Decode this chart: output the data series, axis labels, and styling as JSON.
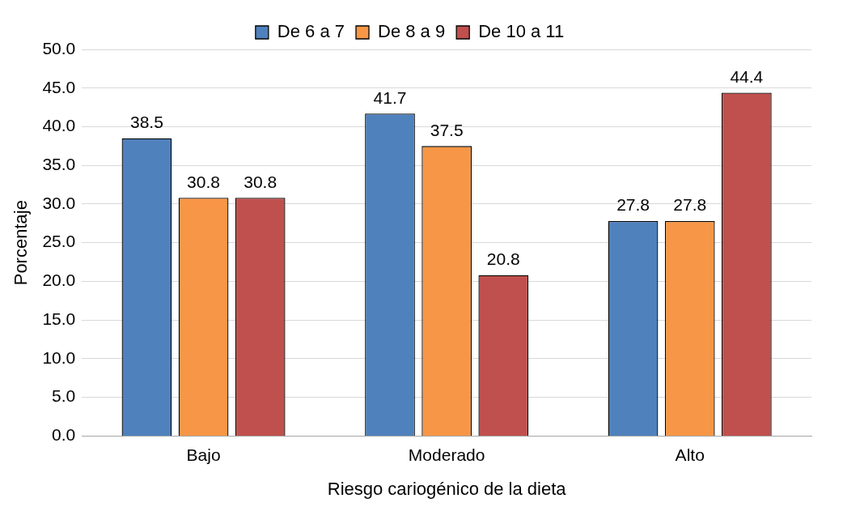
{
  "chart_data": {
    "type": "bar",
    "xlabel": "Riesgo cariogénico de la dieta",
    "ylabel": "Porcentaje",
    "categories": [
      "Bajo",
      "Moderado",
      "Alto"
    ],
    "series": [
      {
        "name": "De 6 a 7",
        "color": "#4f81bd",
        "values": [
          38.5,
          41.7,
          27.8
        ]
      },
      {
        "name": "De 8 a 9",
        "color": "#f79646",
        "values": [
          30.8,
          37.5,
          27.8
        ]
      },
      {
        "name": "De 10 a 11",
        "color": "#c0504d",
        "values": [
          30.8,
          20.8,
          44.4
        ]
      }
    ],
    "ylim": [
      0,
      50
    ],
    "yticks": [
      {
        "value": 0,
        "label": "0.0"
      },
      {
        "value": 5,
        "label": "5.0"
      },
      {
        "value": 10,
        "label": "10.0"
      },
      {
        "value": 15,
        "label": "15.0"
      },
      {
        "value": 20,
        "label": "20.0"
      },
      {
        "value": 25,
        "label": "25.0"
      },
      {
        "value": 30,
        "label": "30.0"
      },
      {
        "value": 35,
        "label": "35.0"
      },
      {
        "value": 40,
        "label": "40.0"
      },
      {
        "value": 45,
        "label": "45.0"
      },
      {
        "value": 50,
        "label": "50.0"
      }
    ],
    "grid": "y",
    "legend": "top",
    "data_labels": true
  }
}
